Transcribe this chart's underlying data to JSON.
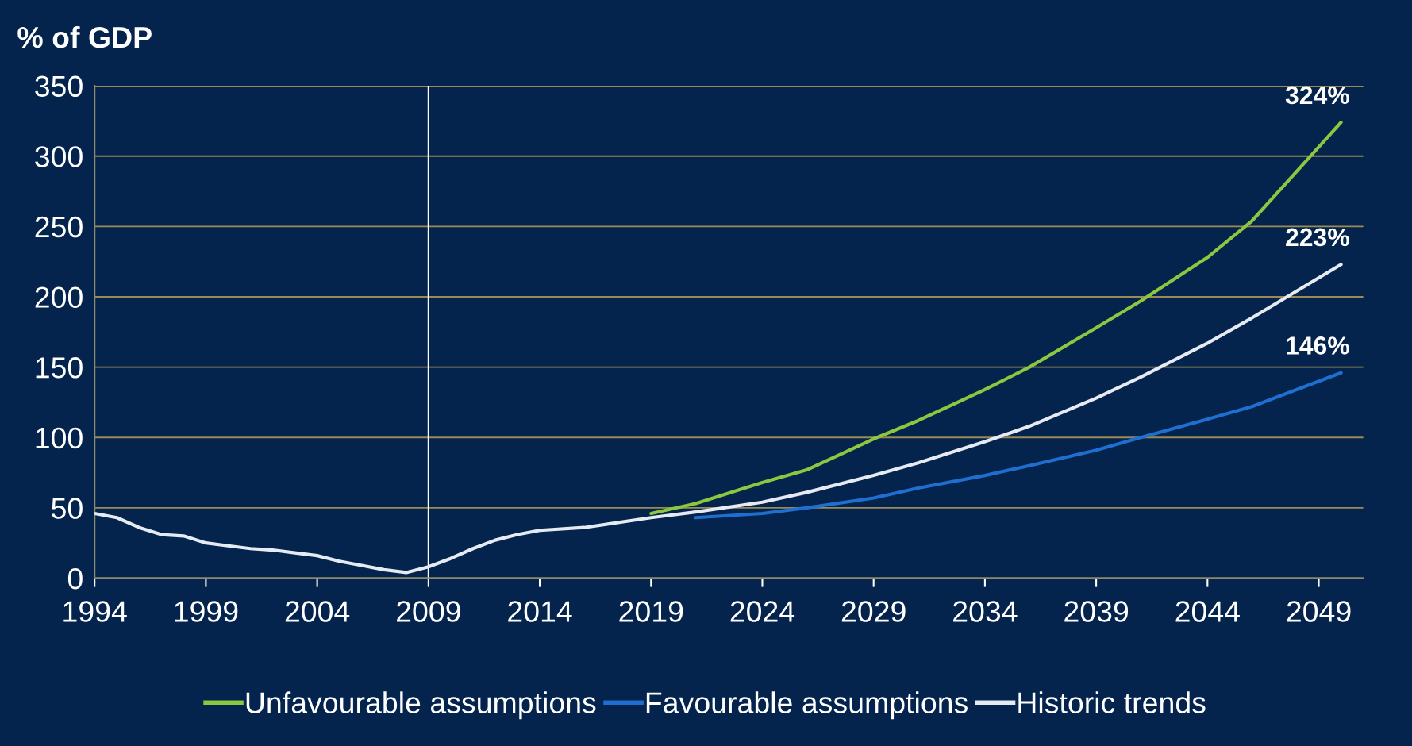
{
  "chart_data": {
    "type": "line",
    "ylabel": "% of GDP",
    "series": [
      {
        "name": "Unfavourable assumptions",
        "color": "#8dc63f",
        "x": [
          2019,
          2021,
          2024,
          2026,
          2029,
          2031,
          2034,
          2036,
          2039,
          2041,
          2044,
          2046,
          2050
        ],
        "values": [
          46,
          53,
          68,
          77,
          99,
          112,
          134,
          150,
          178,
          197,
          228,
          254,
          324
        ],
        "value_labels": [
          null,
          null,
          null,
          null,
          null,
          null,
          null,
          null,
          null,
          null,
          null,
          null,
          "324%"
        ]
      },
      {
        "name": "Favourable assumptions",
        "color": "#1f6fd1",
        "x": [
          2021,
          2024,
          2026,
          2029,
          2031,
          2034,
          2036,
          2039,
          2041,
          2044,
          2046,
          2050
        ],
        "values": [
          43,
          46,
          50,
          57,
          64,
          73,
          80,
          91,
          100,
          113,
          122,
          146
        ],
        "value_labels": [
          null,
          null,
          null,
          null,
          null,
          null,
          null,
          null,
          null,
          null,
          null,
          "146%"
        ]
      },
      {
        "name": "Historic trends",
        "color": "#e6eaf2",
        "x": [
          1994,
          1995,
          1996,
          1997,
          1998,
          1999,
          2000,
          2001,
          2002,
          2003,
          2004,
          2005,
          2006,
          2007,
          2008,
          2009,
          2010,
          2011,
          2012,
          2013,
          2014,
          2016,
          2019,
          2021,
          2024,
          2026,
          2029,
          2031,
          2034,
          2036,
          2039,
          2041,
          2044,
          2046,
          2050
        ],
        "values": [
          46,
          43,
          36,
          31,
          30,
          25,
          23,
          21,
          20,
          18,
          16,
          12,
          9,
          6,
          4,
          8,
          14,
          21,
          27,
          31,
          34,
          36,
          43,
          47,
          54,
          61,
          73,
          82,
          97,
          108,
          128,
          143,
          167,
          185,
          223
        ],
        "value_labels": [
          null,
          null,
          null,
          null,
          null,
          null,
          null,
          null,
          null,
          null,
          null,
          null,
          null,
          null,
          null,
          null,
          null,
          null,
          null,
          null,
          null,
          null,
          null,
          null,
          null,
          null,
          null,
          null,
          null,
          null,
          null,
          null,
          null,
          null,
          "223%"
        ]
      }
    ],
    "xlim": [
      1994,
      2051
    ],
    "xticks": [
      1994,
      1999,
      2004,
      2009,
      2014,
      2019,
      2024,
      2029,
      2034,
      2039,
      2044,
      2049
    ],
    "ylim": [
      0,
      350
    ],
    "yticks": [
      0,
      50,
      100,
      150,
      200,
      250,
      300,
      350
    ],
    "grid": "y",
    "legend": "bottom",
    "marker": "none",
    "line_style": "solid",
    "ref_lines": [
      {
        "axis": "x",
        "value": 2009,
        "color": "#ffffff",
        "line_style": "solid"
      }
    ]
  }
}
